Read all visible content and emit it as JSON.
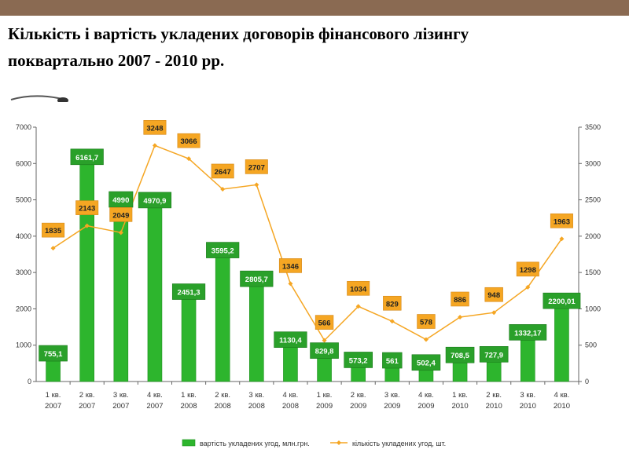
{
  "slide": {
    "title_line1": "Кількість і вартість укладених договорів фінансового лізингу",
    "title_line2": "поквартально 2007 - 2010 рр."
  },
  "chart_data": {
    "type": "bar",
    "categories": [
      [
        "1 кв.",
        "2007"
      ],
      [
        "2 кв.",
        "2007"
      ],
      [
        "3 кв.",
        "2007"
      ],
      [
        "4 кв.",
        "2007"
      ],
      [
        "1 кв.",
        "2008"
      ],
      [
        "2 кв.",
        "2008"
      ],
      [
        "3 кв.",
        "2008"
      ],
      [
        "4 кв.",
        "2008"
      ],
      [
        "1 кв.",
        "2009"
      ],
      [
        "2 кв.",
        "2009"
      ],
      [
        "3 кв.",
        "2009"
      ],
      [
        "4 кв.",
        "2009"
      ],
      [
        "1 кв.",
        "2010"
      ],
      [
        "2 кв.",
        "2010"
      ],
      [
        "3 кв.",
        "2010"
      ],
      [
        "4 кв.",
        "2010"
      ]
    ],
    "series": [
      {
        "name": "вартість укладених угод, млн.грн.",
        "kind": "bar",
        "axis": "left",
        "color": "#2db52d",
        "values": [
          755.1,
          6161.7,
          4990,
          4970.9,
          2451.3,
          3595.2,
          2805.7,
          1130.4,
          829.8,
          573.2,
          561,
          502.4,
          708.5,
          727.9,
          1332.17,
          2200.01
        ],
        "labels": [
          "755,1",
          "6161,7",
          "4990",
          "4970,9",
          "2451,3",
          "3595,2",
          "2805,7",
          "1130,4",
          "829,8",
          "573,2",
          "561",
          "502,4",
          "708,5",
          "727,9",
          "1332,17",
          "2200,01"
        ]
      },
      {
        "name": "кількість укладених угод, шт.",
        "kind": "line",
        "axis": "right",
        "color": "#f5a623",
        "values": [
          1835,
          2143,
          2049,
          3248,
          3066,
          2647,
          2707,
          1346,
          566,
          1034,
          829,
          578,
          886,
          948,
          1298,
          1963
        ],
        "labels": [
          "1835",
          "2143",
          "2049",
          "3248",
          "3066",
          "2647",
          "2707",
          "1346",
          "566",
          "1034",
          "829",
          "578",
          "886",
          "948",
          "1298",
          "1963"
        ]
      }
    ],
    "y_left": {
      "min": 0,
      "max": 7000,
      "step": 1000,
      "ticks": [
        "0",
        "1000",
        "2000",
        "3000",
        "4000",
        "5000",
        "6000",
        "7000"
      ]
    },
    "y_right": {
      "min": 0,
      "max": 3500,
      "step": 500,
      "ticks": [
        "0",
        "500",
        "1000",
        "1500",
        "2000",
        "2500",
        "3000",
        "3500"
      ]
    },
    "grid": false,
    "legend_position": "bottom"
  }
}
